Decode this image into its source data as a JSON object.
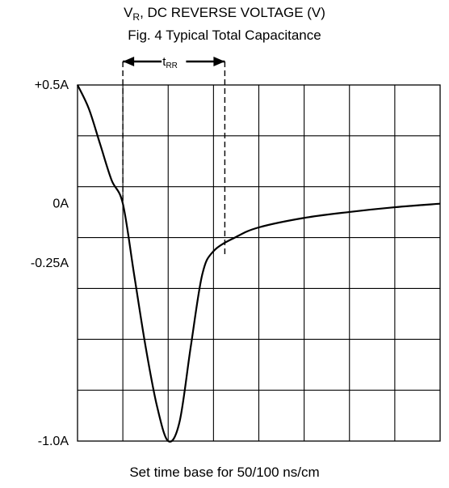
{
  "header": {
    "voltage_axis_prefix": "V",
    "voltage_axis_subscript": "R",
    "voltage_axis_rest": ", DC REVERSE VOLTAGE (V)",
    "figure_caption": "Fig. 4  Typical Total Capacitance"
  },
  "chart_data": {
    "type": "line",
    "title": "",
    "xlabel": "Set time base for 50/100 ns/cm",
    "ylabel": "",
    "x_divisions": 8,
    "y_divisions": 7,
    "y_tick_labels": [
      {
        "label": "+0.5A",
        "value": 0.5
      },
      {
        "label": "0A",
        "value": 0
      },
      {
        "label": "-0.25A",
        "value": -0.25
      },
      {
        "label": "-1.0A",
        "value": -1.0
      }
    ],
    "ylim": [
      -1.0,
      0.5
    ],
    "xlim": [
      0,
      8
    ],
    "grid": true,
    "series": [
      {
        "points": [
          [
            0,
            0.5
          ],
          [
            0.25,
            0.4
          ],
          [
            0.5,
            0.25
          ],
          [
            0.75,
            0.1
          ],
          [
            1.0,
            0.0
          ],
          [
            1.25,
            -0.3
          ],
          [
            1.5,
            -0.6
          ],
          [
            1.75,
            -0.85
          ],
          [
            2.0,
            -1.0
          ],
          [
            2.25,
            -0.92
          ],
          [
            2.5,
            -0.6
          ],
          [
            2.75,
            -0.3
          ],
          [
            3.0,
            -0.2
          ],
          [
            3.5,
            -0.14
          ],
          [
            4.0,
            -0.1
          ],
          [
            5.0,
            -0.06
          ],
          [
            6.0,
            -0.035
          ],
          [
            7.0,
            -0.015
          ],
          [
            8.0,
            0.0
          ]
        ]
      }
    ],
    "annotations": [
      {
        "text_main": "t",
        "text_sub": "RR",
        "from_x": 1.0,
        "to_x": 3.25,
        "type": "dashed-bracket-arrow"
      }
    ]
  }
}
